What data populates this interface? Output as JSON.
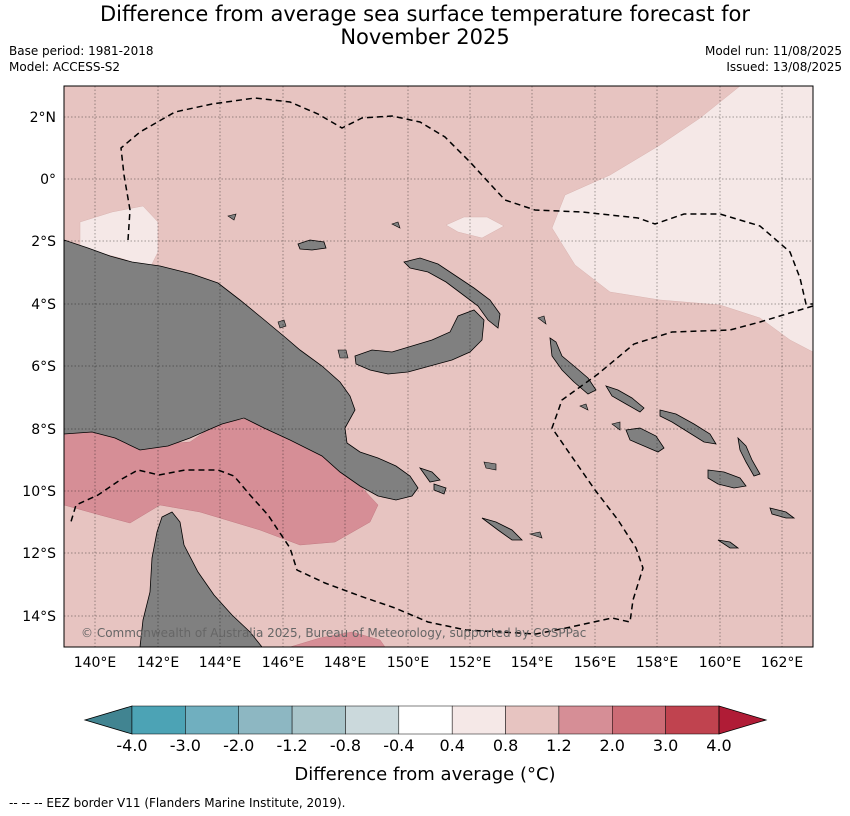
{
  "header": {
    "title_line1": "Difference from average sea surface temperature forecast for",
    "title_line2": "November 2025",
    "base_period": "Base period: 1981-2018",
    "model": "Model: ACCESS-S2",
    "model_run": "Model run: 11/08/2025",
    "issued": "Issued: 13/08/2025"
  },
  "map": {
    "lat_labels": [
      "2°N",
      "0°",
      "2°S",
      "4°S",
      "6°S",
      "8°S",
      "10°S",
      "12°S",
      "14°S"
    ],
    "lon_labels": [
      "140°E",
      "142°E",
      "144°E",
      "146°E",
      "148°E",
      "150°E",
      "152°E",
      "154°E",
      "156°E",
      "158°E",
      "160°E",
      "162°E"
    ],
    "copyright": "© Commonwealth of Australia 2025, Bureau of Meteorology, supported by COSPPac",
    "colors": {
      "ocean_base": "#e7c4c1",
      "warm_light": "#f5e8e7",
      "warm_strong": "#d68e96",
      "land": "#808080",
      "eez_line": "#000000"
    }
  },
  "colorbar": {
    "title": "Difference from average (°C)",
    "tick_labels": [
      "-4.0",
      "-3.0",
      "-2.0",
      "-1.2",
      "-0.8",
      "-0.4",
      "0.4",
      "0.8",
      "1.2",
      "2.0",
      "3.0",
      "4.0"
    ],
    "colors": [
      "#418491",
      "#4ca3b5",
      "#70afbf",
      "#8db7c2",
      "#a9c5ca",
      "#cbd9dc",
      "#ffffff",
      "#f5e8e7",
      "#e7c4c1",
      "#d68e96",
      "#cc6b75",
      "#c0434f",
      "#b01c36"
    ]
  },
  "footnote": "-- -- -- EEZ border V11 (Flanders Marine Institute, 2019)."
}
